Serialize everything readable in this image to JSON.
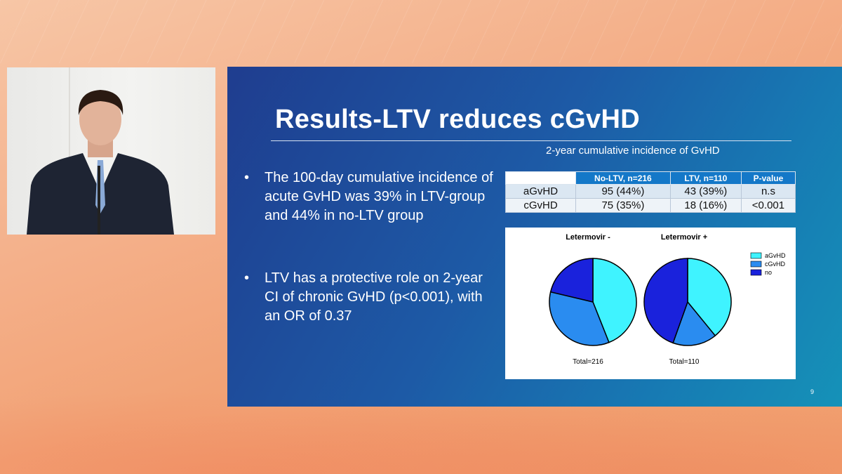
{
  "slide": {
    "title": "Results-LTV reduces cGvHD",
    "bullets": [
      "The 100-day cumulative incidence of acute GvHD was 39% in LTV-group and 44% in no-LTV group",
      "LTV has a protective role on 2-year CI of chronic GvHD (p<0.001), with an OR of 0.37"
    ],
    "bullet_marker": "•",
    "page_number": "9",
    "table": {
      "caption": "2-year cumulative incidence of GvHD",
      "headers": [
        "",
        "No-LTV, n=216",
        "LTV, n=110",
        "P-value"
      ],
      "rows": [
        [
          "aGvHD",
          "95 (44%)",
          "43 (39%)",
          "n.s"
        ],
        [
          "cGvHD",
          "75 (35%)",
          "18 (16%)",
          "<0.001"
        ]
      ]
    }
  },
  "chart_data": {
    "type": "pie",
    "legend_position": "right",
    "categories": [
      "aGvHD",
      "cGvHD",
      "no"
    ],
    "colors": [
      "#3ff3ff",
      "#2a8cf0",
      "#1a22dc"
    ],
    "pies": [
      {
        "title": "Letermovir -",
        "total_label": "Total=216",
        "values": [
          95,
          75,
          46
        ]
      },
      {
        "title": "Letermovir +",
        "total_label": "Total=110",
        "values": [
          43,
          18,
          49
        ]
      }
    ]
  }
}
